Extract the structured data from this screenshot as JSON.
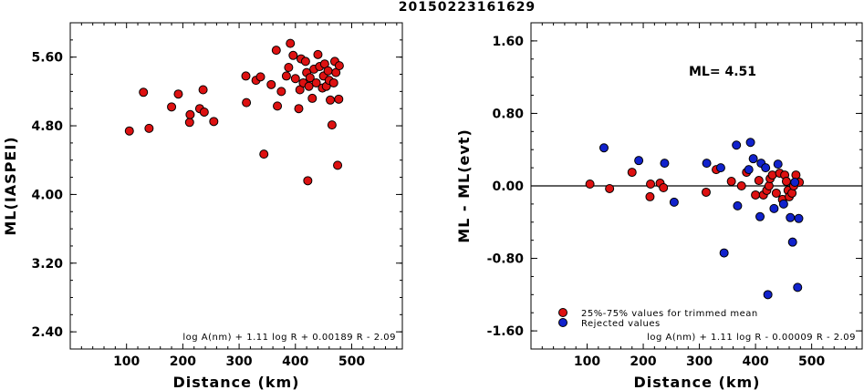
{
  "title": "20150223161629",
  "chart_data": [
    {
      "type": "scatter",
      "xlabel": "Distance (km)",
      "ylabel": "ML(IASPEI)",
      "xlim": [
        0,
        590
      ],
      "ylim": [
        2.2,
        6.0
      ],
      "xticks": [
        "100",
        "200",
        "300",
        "400",
        "500"
      ],
      "yticks": [
        "2.40",
        "3.20",
        "4.00",
        "4.80",
        "5.60"
      ],
      "formula": "log A(nm) + 1.11 log R + 0.00189 R - 2.09",
      "points": [
        {
          "x": 105,
          "y": 4.74
        },
        {
          "x": 130,
          "y": 5.19
        },
        {
          "x": 140,
          "y": 4.77
        },
        {
          "x": 180,
          "y": 5.02
        },
        {
          "x": 192,
          "y": 5.17
        },
        {
          "x": 212,
          "y": 4.84
        },
        {
          "x": 213,
          "y": 4.93
        },
        {
          "x": 230,
          "y": 5.0
        },
        {
          "x": 236,
          "y": 5.22
        },
        {
          "x": 238,
          "y": 4.96
        },
        {
          "x": 255,
          "y": 4.85
        },
        {
          "x": 312,
          "y": 5.38
        },
        {
          "x": 313,
          "y": 5.07
        },
        {
          "x": 330,
          "y": 5.33
        },
        {
          "x": 338,
          "y": 5.37
        },
        {
          "x": 344,
          "y": 4.47
        },
        {
          "x": 357,
          "y": 5.28
        },
        {
          "x": 366,
          "y": 5.68
        },
        {
          "x": 368,
          "y": 5.03
        },
        {
          "x": 375,
          "y": 5.2
        },
        {
          "x": 384,
          "y": 5.38
        },
        {
          "x": 388,
          "y": 5.48
        },
        {
          "x": 391,
          "y": 5.76
        },
        {
          "x": 396,
          "y": 5.62
        },
        {
          "x": 400,
          "y": 5.35
        },
        {
          "x": 406,
          "y": 5.0
        },
        {
          "x": 408,
          "y": 5.22
        },
        {
          "x": 410,
          "y": 5.58
        },
        {
          "x": 414,
          "y": 5.3
        },
        {
          "x": 418,
          "y": 5.55
        },
        {
          "x": 420,
          "y": 5.42
        },
        {
          "x": 422,
          "y": 4.16
        },
        {
          "x": 424,
          "y": 5.26
        },
        {
          "x": 426,
          "y": 5.36
        },
        {
          "x": 430,
          "y": 5.12
        },
        {
          "x": 433,
          "y": 5.46
        },
        {
          "x": 437,
          "y": 5.3
        },
        {
          "x": 440,
          "y": 5.63
        },
        {
          "x": 443,
          "y": 5.49
        },
        {
          "x": 448,
          "y": 5.24
        },
        {
          "x": 450,
          "y": 5.38
        },
        {
          "x": 452,
          "y": 5.52
        },
        {
          "x": 455,
          "y": 5.26
        },
        {
          "x": 458,
          "y": 5.44
        },
        {
          "x": 460,
          "y": 5.33
        },
        {
          "x": 462,
          "y": 5.1
        },
        {
          "x": 465,
          "y": 4.81
        },
        {
          "x": 468,
          "y": 5.3
        },
        {
          "x": 470,
          "y": 5.55
        },
        {
          "x": 472,
          "y": 5.42
        },
        {
          "x": 475,
          "y": 4.34
        },
        {
          "x": 477,
          "y": 5.11
        },
        {
          "x": 478,
          "y": 5.5
        }
      ]
    },
    {
      "type": "scatter",
      "xlabel": "Distance (km)",
      "ylabel": "ML - ML(evt)",
      "xlim": [
        0,
        590
      ],
      "ylim": [
        -1.8,
        1.8
      ],
      "xticks": [
        "100",
        "200",
        "300",
        "400",
        "500"
      ],
      "yticks": [
        "-1.60",
        "-0.80",
        "0.00",
        "0.80",
        "1.60"
      ],
      "reference_line": 0.0,
      "ml_label": "ML= 4.51",
      "formula": "log A(nm) + 1.11 log R - 0.00009 R - 2.09",
      "series": [
        {
          "name": "25%-75% values for trimmed mean",
          "color": "#dd1111",
          "points": [
            {
              "x": 105,
              "y": 0.02
            },
            {
              "x": 140,
              "y": -0.03
            },
            {
              "x": 180,
              "y": 0.15
            },
            {
              "x": 212,
              "y": -0.12
            },
            {
              "x": 213,
              "y": 0.02
            },
            {
              "x": 230,
              "y": 0.03
            },
            {
              "x": 236,
              "y": -0.02
            },
            {
              "x": 312,
              "y": -0.07
            },
            {
              "x": 330,
              "y": 0.18
            },
            {
              "x": 357,
              "y": 0.05
            },
            {
              "x": 375,
              "y": 0.0
            },
            {
              "x": 384,
              "y": 0.15
            },
            {
              "x": 400,
              "y": -0.1
            },
            {
              "x": 406,
              "y": 0.06
            },
            {
              "x": 414,
              "y": -0.1
            },
            {
              "x": 420,
              "y": -0.05
            },
            {
              "x": 424,
              "y": 0.0
            },
            {
              "x": 426,
              "y": 0.08
            },
            {
              "x": 430,
              "y": 0.12
            },
            {
              "x": 437,
              "y": -0.08
            },
            {
              "x": 443,
              "y": 0.14
            },
            {
              "x": 448,
              "y": -0.15
            },
            {
              "x": 452,
              "y": 0.12
            },
            {
              "x": 455,
              "y": 0.05
            },
            {
              "x": 458,
              "y": -0.05
            },
            {
              "x": 460,
              "y": -0.12
            },
            {
              "x": 465,
              "y": -0.08
            },
            {
              "x": 468,
              "y": 0.0
            },
            {
              "x": 472,
              "y": 0.12
            },
            {
              "x": 478,
              "y": 0.04
            }
          ]
        },
        {
          "name": "Rejected values",
          "color": "#1122cc",
          "points": [
            {
              "x": 130,
              "y": 0.42
            },
            {
              "x": 192,
              "y": 0.28
            },
            {
              "x": 238,
              "y": 0.25
            },
            {
              "x": 255,
              "y": -0.18
            },
            {
              "x": 313,
              "y": 0.25
            },
            {
              "x": 338,
              "y": 0.2
            },
            {
              "x": 344,
              "y": -0.74
            },
            {
              "x": 366,
              "y": 0.45
            },
            {
              "x": 368,
              "y": -0.22
            },
            {
              "x": 388,
              "y": 0.18
            },
            {
              "x": 391,
              "y": 0.48
            },
            {
              "x": 396,
              "y": 0.3
            },
            {
              "x": 408,
              "y": -0.34
            },
            {
              "x": 410,
              "y": 0.25
            },
            {
              "x": 418,
              "y": 0.2
            },
            {
              "x": 422,
              "y": -1.2
            },
            {
              "x": 433,
              "y": -0.25
            },
            {
              "x": 440,
              "y": 0.24
            },
            {
              "x": 450,
              "y": -0.2
            },
            {
              "x": 462,
              "y": -0.35
            },
            {
              "x": 466,
              "y": -0.62
            },
            {
              "x": 470,
              "y": 0.04
            },
            {
              "x": 475,
              "y": -1.12
            },
            {
              "x": 477,
              "y": -0.36
            }
          ]
        }
      ]
    }
  ]
}
